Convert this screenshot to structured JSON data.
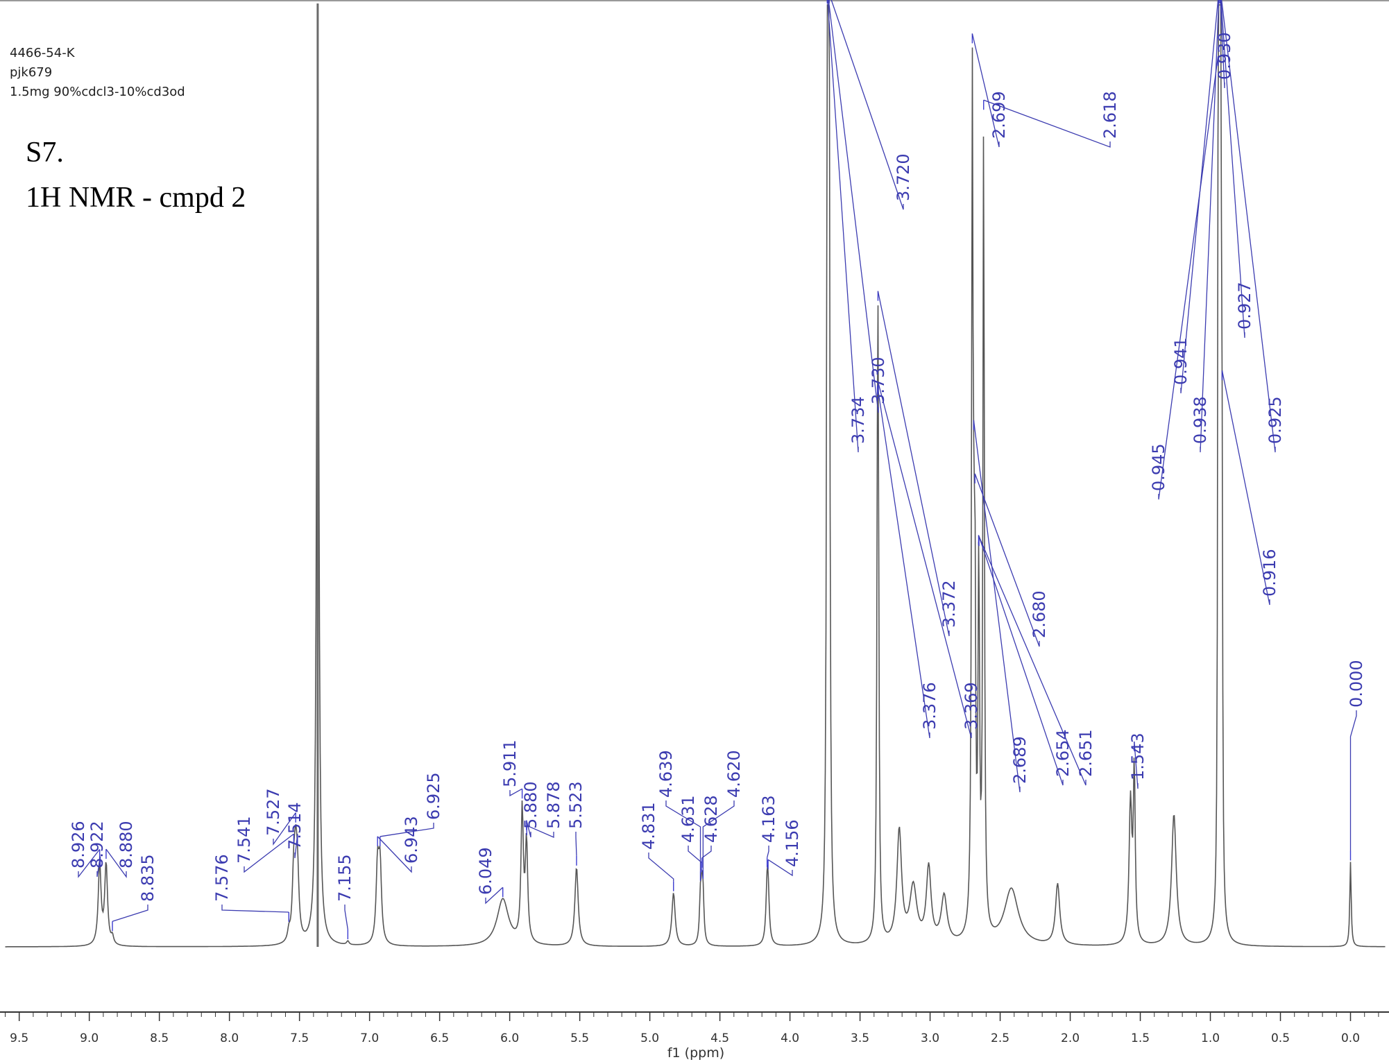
{
  "header": {
    "sample_id": "4466-54-K",
    "notebook": "pjk679",
    "conditions": "1.5mg 90%cdcl3-10%cd3od",
    "figure_label": "S7.",
    "figure_title": "1H NMR - cmpd 2"
  },
  "colors": {
    "spectrum": "#555555",
    "peak_label": "#3b3bb0",
    "integral_marker": "#3b3bd0",
    "axis": "#333333",
    "solvent_line": "#6a6a6a"
  },
  "chart_data": {
    "type": "line",
    "xlabel": "f1 (ppm)",
    "xlim": [
      9.6,
      -0.25
    ],
    "x_reversed": true,
    "x_ticks": [
      "9.5",
      "9.0",
      "8.5",
      "8.0",
      "7.5",
      "7.0",
      "6.5",
      "6.0",
      "5.5",
      "5.0",
      "4.5",
      "4.0",
      "3.5",
      "3.0",
      "2.5",
      "2.0",
      "1.5",
      "1.0",
      "0.5",
      "0.0"
    ],
    "peak_labels": [
      "8.926",
      "8.922",
      "8.880",
      "8.835",
      "7.576",
      "7.541",
      "7.527",
      "7.514",
      "7.155",
      "6.943",
      "6.925",
      "6.049",
      "5.911",
      "5.880",
      "5.878",
      "5.523",
      "4.831",
      "4.639",
      "4.631",
      "4.628",
      "4.620",
      "4.163",
      "4.156",
      "3.734",
      "3.730",
      "3.720",
      "3.376",
      "3.372",
      "3.369",
      "2.699",
      "2.689",
      "2.680",
      "2.654",
      "2.651",
      "2.618",
      "1.543",
      "0.945",
      "0.941",
      "0.938",
      "0.930",
      "0.927",
      "0.925",
      "0.916",
      "0.000"
    ],
    "peaks": [
      {
        "ppm": 8.926,
        "height": 0.086,
        "width": 0.012
      },
      {
        "ppm": 8.88,
        "height": 0.086,
        "width": 0.012
      },
      {
        "ppm": 8.835,
        "height": 0.008,
        "width": 0.01
      },
      {
        "ppm": 7.576,
        "height": 0.01,
        "width": 0.01
      },
      {
        "ppm": 7.541,
        "height": 0.064,
        "width": 0.012
      },
      {
        "ppm": 7.527,
        "height": 0.072,
        "width": 0.012
      },
      {
        "ppm": 7.514,
        "height": 0.06,
        "width": 0.012
      },
      {
        "ppm": 7.37,
        "height": 1.0,
        "width": 0.009
      },
      {
        "ppm": 7.155,
        "height": 0.004,
        "width": 0.01
      },
      {
        "ppm": 6.943,
        "height": 0.08,
        "width": 0.012
      },
      {
        "ppm": 6.925,
        "height": 0.08,
        "width": 0.012
      },
      {
        "ppm": 6.049,
        "height": 0.05,
        "width": 0.05
      },
      {
        "ppm": 5.911,
        "height": 0.14,
        "width": 0.01
      },
      {
        "ppm": 5.88,
        "height": 0.105,
        "width": 0.01
      },
      {
        "ppm": 5.523,
        "height": 0.084,
        "width": 0.014
      },
      {
        "ppm": 4.831,
        "height": 0.057,
        "width": 0.014
      },
      {
        "ppm": 4.639,
        "height": 0.046,
        "width": 0.008
      },
      {
        "ppm": 4.628,
        "height": 0.046,
        "width": 0.008
      },
      {
        "ppm": 4.62,
        "height": 0.04,
        "width": 0.008
      },
      {
        "ppm": 4.163,
        "height": 0.052,
        "width": 0.01
      },
      {
        "ppm": 4.156,
        "height": 0.045,
        "width": 0.01
      },
      {
        "ppm": 3.734,
        "height": 0.56,
        "width": 0.006
      },
      {
        "ppm": 3.73,
        "height": 0.63,
        "width": 0.006
      },
      {
        "ppm": 3.72,
        "height": 0.79,
        "width": 0.006
      },
      {
        "ppm": 3.376,
        "height": 0.26,
        "width": 0.006
      },
      {
        "ppm": 3.372,
        "height": 0.34,
        "width": 0.006
      },
      {
        "ppm": 3.369,
        "height": 0.2,
        "width": 0.006
      },
      {
        "ppm": 3.22,
        "height": 0.12,
        "width": 0.02
      },
      {
        "ppm": 3.12,
        "height": 0.06,
        "width": 0.03
      },
      {
        "ppm": 3.01,
        "height": 0.08,
        "width": 0.02
      },
      {
        "ppm": 2.9,
        "height": 0.05,
        "width": 0.025
      },
      {
        "ppm": 2.699,
        "height": 0.86,
        "width": 0.006
      },
      {
        "ppm": 2.689,
        "height": 0.2,
        "width": 0.006
      },
      {
        "ppm": 2.68,
        "height": 0.32,
        "width": 0.006
      },
      {
        "ppm": 2.654,
        "height": 0.2,
        "width": 0.006
      },
      {
        "ppm": 2.651,
        "height": 0.2,
        "width": 0.006
      },
      {
        "ppm": 2.618,
        "height": 0.86,
        "width": 0.006
      },
      {
        "ppm": 2.42,
        "height": 0.06,
        "width": 0.06
      },
      {
        "ppm": 2.09,
        "height": 0.065,
        "width": 0.018
      },
      {
        "ppm": 1.57,
        "height": 0.15,
        "width": 0.012
      },
      {
        "ppm": 1.543,
        "height": 0.18,
        "width": 0.008
      },
      {
        "ppm": 1.26,
        "height": 0.14,
        "width": 0.02
      },
      {
        "ppm": 0.945,
        "height": 0.44,
        "width": 0.004
      },
      {
        "ppm": 0.941,
        "height": 0.5,
        "width": 0.004
      },
      {
        "ppm": 0.938,
        "height": 0.52,
        "width": 0.004
      },
      {
        "ppm": 0.93,
        "height": 0.92,
        "width": 0.004
      },
      {
        "ppm": 0.927,
        "height": 0.6,
        "width": 0.004
      },
      {
        "ppm": 0.925,
        "height": 0.5,
        "width": 0.004
      },
      {
        "ppm": 0.916,
        "height": 0.34,
        "width": 0.004
      },
      {
        "ppm": 0.0,
        "height": 0.09,
        "width": 0.006
      }
    ]
  }
}
